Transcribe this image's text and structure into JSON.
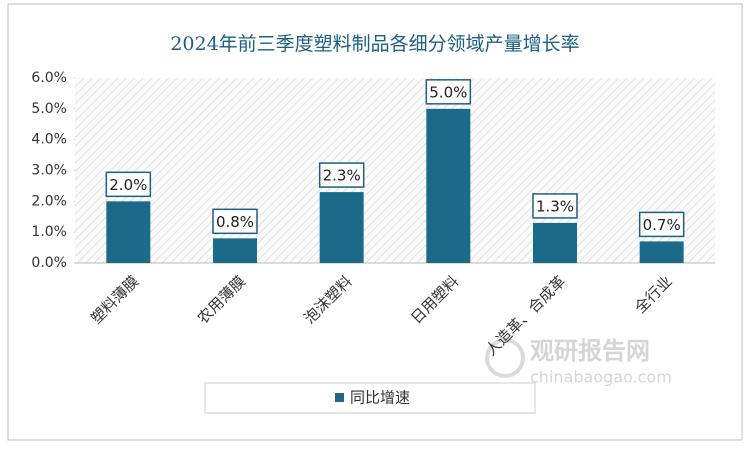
{
  "chart_data": {
    "type": "bar",
    "title": "2024年前三季度塑料制品各细分领域产量增长率",
    "categories": [
      "塑料薄膜",
      "农用薄膜",
      "泡沫塑料",
      "日用塑料",
      "人造革、合成革",
      "全行业"
    ],
    "series": [
      {
        "name": "同比增速",
        "color": "#1b6a8a",
        "values": [
          2.0,
          0.8,
          2.3,
          5.0,
          1.3,
          0.7
        ],
        "value_labels": [
          "2.0%",
          "0.8%",
          "2.3%",
          "5.0%",
          "1.3%",
          "0.7%"
        ]
      }
    ],
    "ylim": [
      0,
      6
    ],
    "yticks": [
      {
        "value": 0,
        "label": "0.0%"
      },
      {
        "value": 1,
        "label": "1.0%"
      },
      {
        "value": 2,
        "label": "2.0%"
      },
      {
        "value": 3,
        "label": "3.0%"
      },
      {
        "value": 4,
        "label": "4.0%"
      },
      {
        "value": 5,
        "label": "5.0%"
      },
      {
        "value": 6,
        "label": "6.0%"
      }
    ],
    "legend": "bottom",
    "watermark": [
      "观研报告网",
      "chinabaogao.com"
    ]
  }
}
